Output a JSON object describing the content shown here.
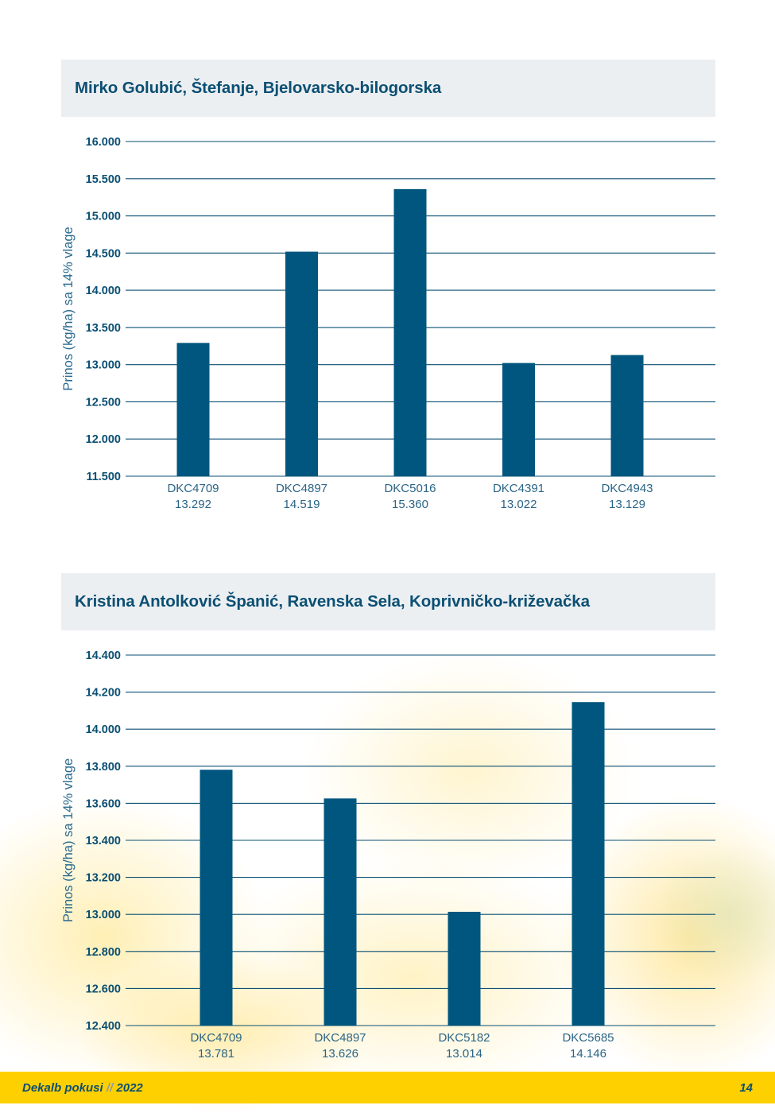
{
  "charts_meta": [
    {
      "title": "Mirko Golubić, Štefanje, Bjelovarsko-bilogorska"
    },
    {
      "title": "Kristina Antolković Španić, Ravenska Sela, Koprivničko-križevačka"
    }
  ],
  "chart_data": [
    {
      "type": "bar",
      "title": "Mirko Golubić, Štefanje, Bjelovarsko-bilogorska",
      "ylabel": "Prinos (kg/ha) sa 14% vlage",
      "ylim": [
        11500,
        16000
      ],
      "yticks": [
        11500,
        12000,
        12500,
        13000,
        13500,
        14000,
        14500,
        15000,
        15500,
        16000
      ],
      "ytick_labels": [
        "11.500",
        "12.000",
        "12.500",
        "13.000",
        "13.500",
        "14.000",
        "14.500",
        "15.000",
        "15.500",
        "16.000"
      ],
      "categories": [
        "DKC4709",
        "DKC4897",
        "DKC5016",
        "DKC4391",
        "DKC4943"
      ],
      "values": [
        13292,
        14519,
        15360,
        13022,
        13129
      ],
      "value_labels": [
        "13.292",
        "14.519",
        "15.360",
        "13.022",
        "13.129"
      ],
      "color": "#00567e",
      "grid": true
    },
    {
      "type": "bar",
      "title": "Kristina Antolković Španić, Ravenska Sela, Koprivničko-križevačka",
      "ylabel": "Prinos (kg/ha) sa 14% vlage",
      "ylim": [
        12400,
        14400
      ],
      "yticks": [
        12400,
        12600,
        12800,
        13000,
        13200,
        13400,
        13600,
        13800,
        14000,
        14200,
        14400
      ],
      "ytick_labels": [
        "12.400",
        "12.600",
        "12.800",
        "13.000",
        "13.200",
        "13.400",
        "13.600",
        "13.800",
        "14.000",
        "14.200",
        "14.400"
      ],
      "categories": [
        "DKC4709",
        "DKC4897",
        "DKC5182",
        "DKC5685"
      ],
      "values": [
        13781,
        13626,
        13014,
        14146
      ],
      "value_labels": [
        "13.781",
        "13.626",
        "13.014",
        "14.146"
      ],
      "color": "#00567e",
      "grid": true
    }
  ],
  "footer": {
    "brand": "Dekalb pokusi",
    "separator": "//",
    "year": "2022",
    "page_number": "14"
  },
  "colors": {
    "accent": "#00567e",
    "title_bg": "#eceff2",
    "footer_bg": "#ffd000",
    "grid": "#0b4f73"
  }
}
